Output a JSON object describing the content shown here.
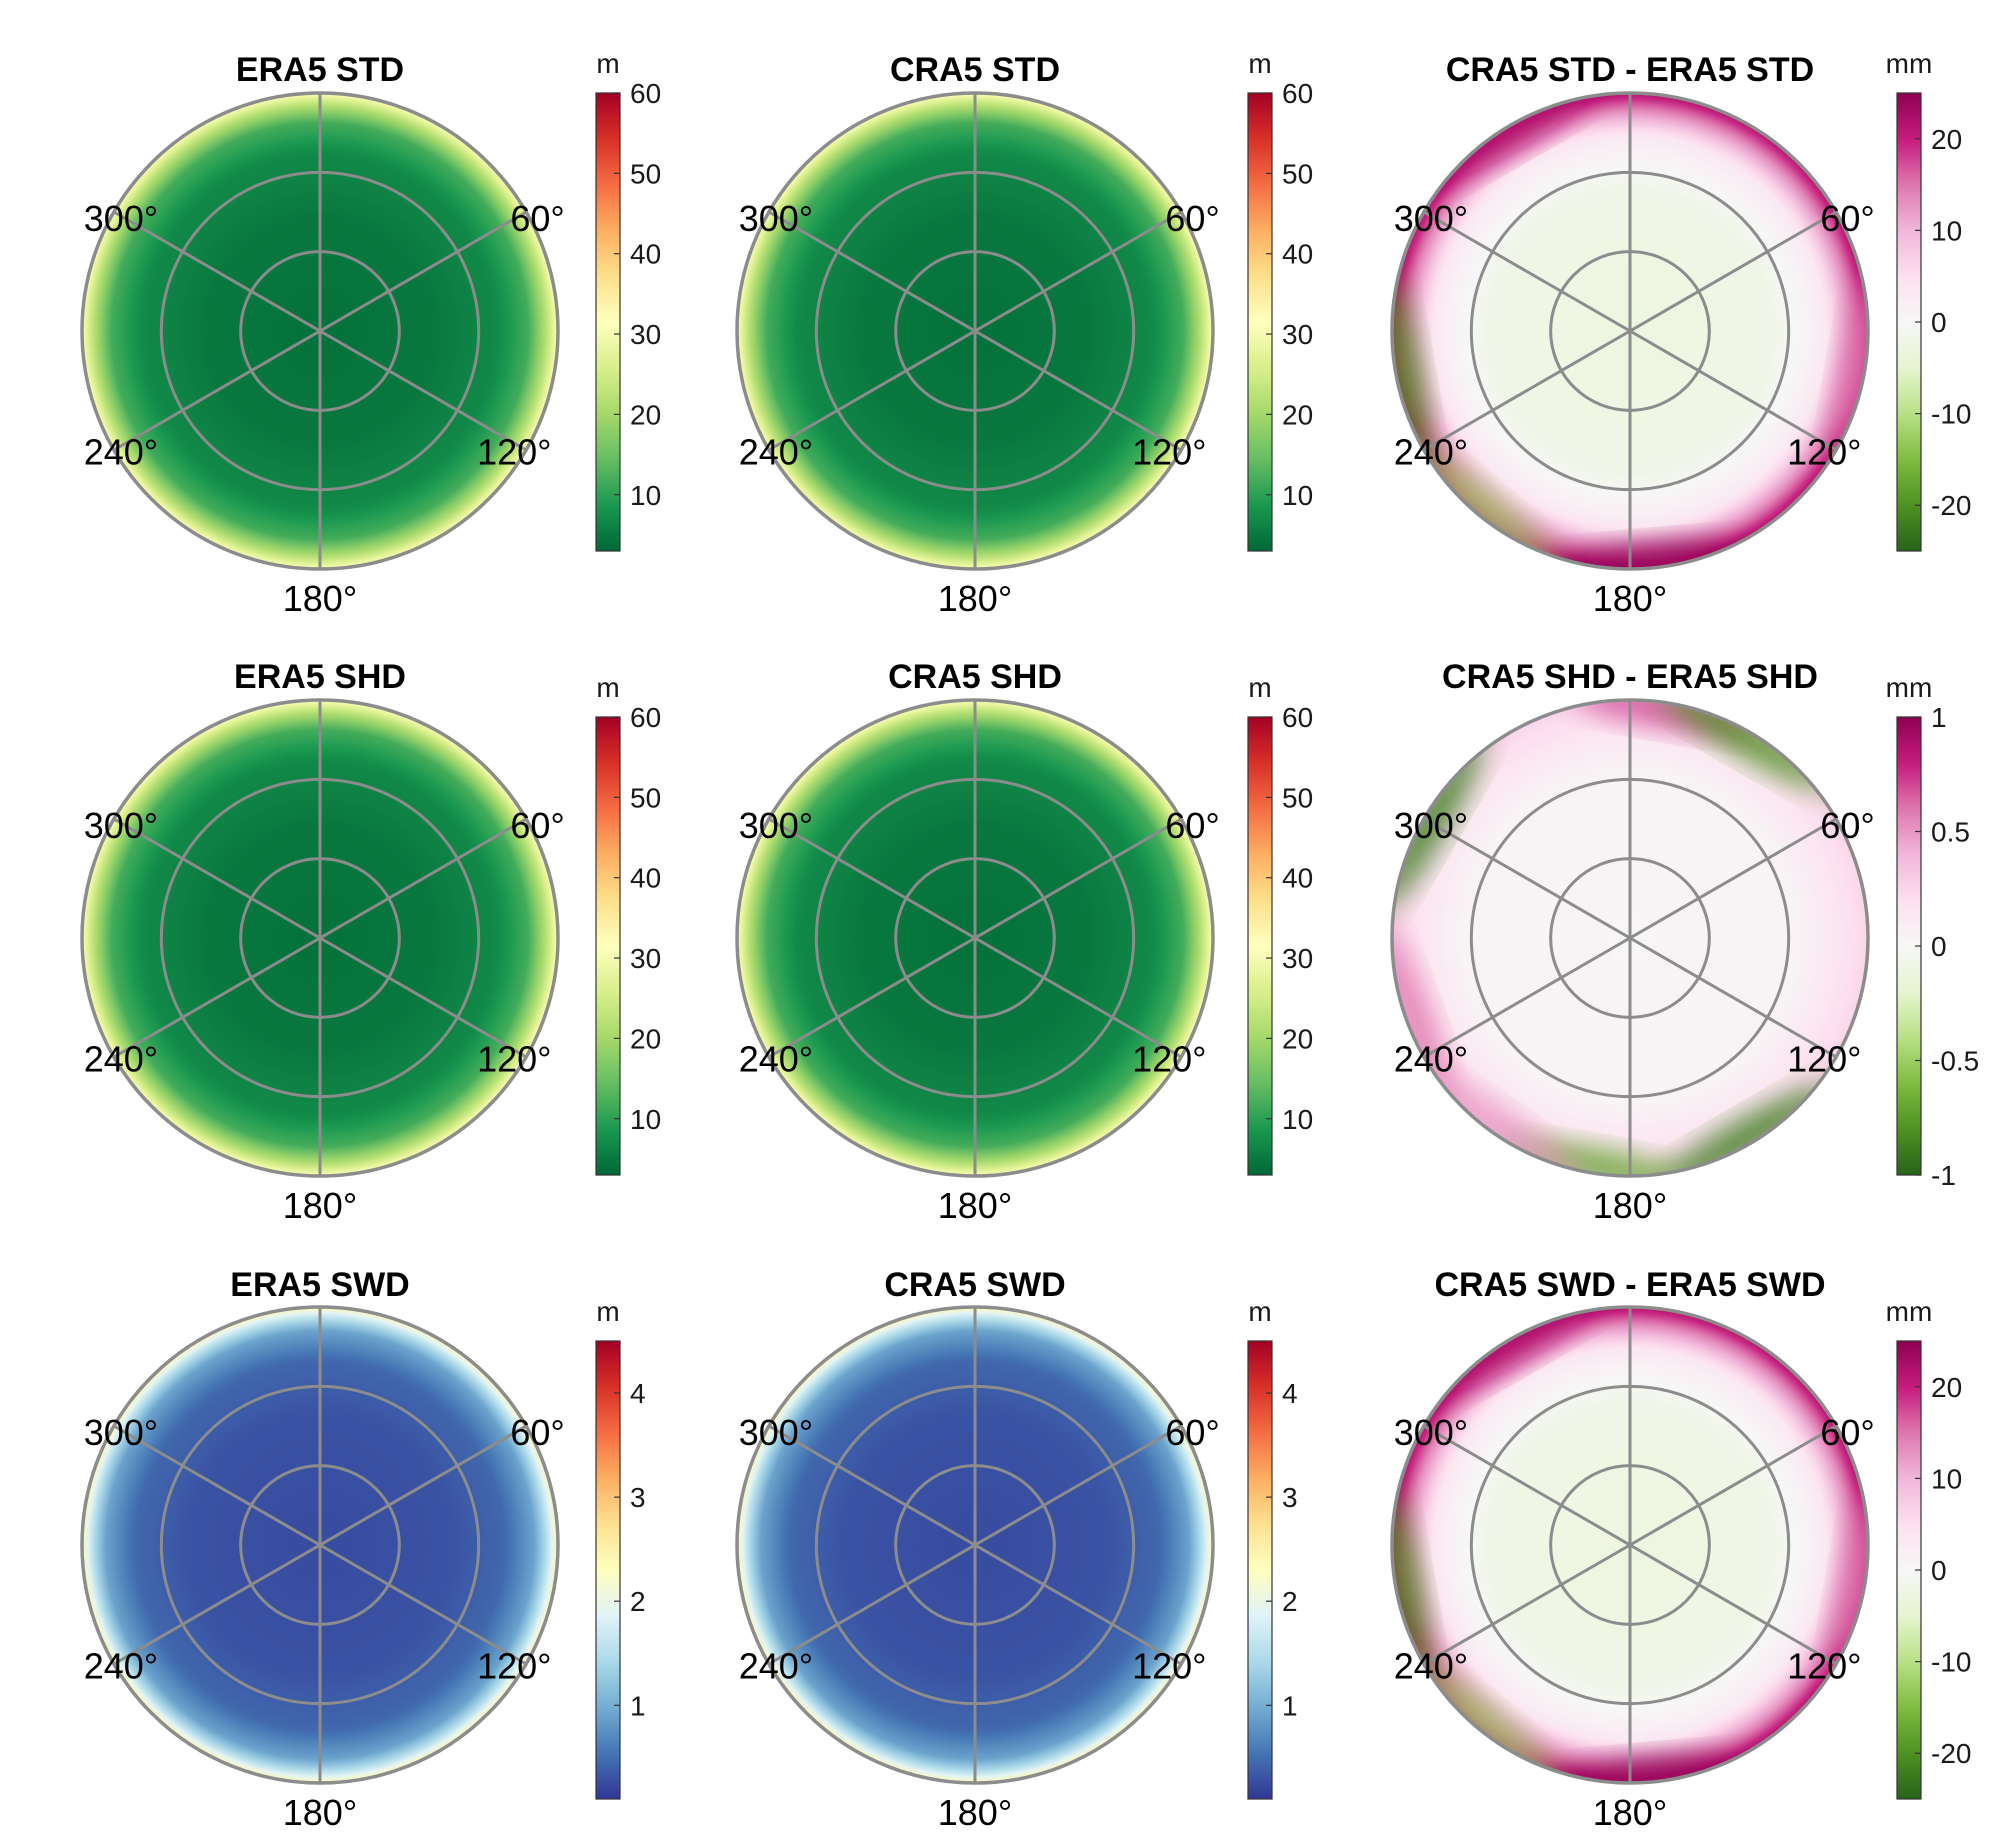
{
  "chart_data": [
    {
      "id": "p1",
      "type": "heatmap",
      "projection": "polar",
      "title": "ERA5 STD",
      "colormap": "RdYlGn_r",
      "colorbar": {
        "unit": "m",
        "range": [
          3,
          60
        ],
        "ticks": [
          10,
          20,
          30,
          40,
          50,
          60
        ]
      },
      "angle_labels": [
        "60°",
        "120°",
        "180°",
        "240°",
        "300°"
      ],
      "radial_profile": [
        [
          0,
          4
        ],
        [
          0.5,
          5
        ],
        [
          0.75,
          7
        ],
        [
          0.88,
          12
        ],
        [
          0.95,
          22
        ],
        [
          1,
          31
        ]
      ]
    },
    {
      "id": "p2",
      "type": "heatmap",
      "projection": "polar",
      "title": "CRA5 STD",
      "colormap": "RdYlGn_r",
      "colorbar": {
        "unit": "m",
        "range": [
          3,
          60
        ],
        "ticks": [
          10,
          20,
          30,
          40,
          50,
          60
        ]
      },
      "angle_labels": [
        "60°",
        "120°",
        "180°",
        "240°",
        "300°"
      ],
      "radial_profile": [
        [
          0,
          4
        ],
        [
          0.5,
          5
        ],
        [
          0.75,
          7
        ],
        [
          0.88,
          12
        ],
        [
          0.95,
          22
        ],
        [
          1,
          31
        ]
      ]
    },
    {
      "id": "p3",
      "type": "heatmap",
      "projection": "polar",
      "title": "CRA5 STD - ERA5 STD",
      "colormap": "PiYG_r",
      "colorbar": {
        "unit": "mm",
        "range": [
          -25,
          25
        ],
        "ticks": [
          -20,
          -10,
          0,
          10,
          20
        ]
      },
      "angle_labels": [
        "60°",
        "120°",
        "180°",
        "240°",
        "300°"
      ],
      "radial_profile": [
        [
          0,
          -3
        ],
        [
          0.6,
          -2
        ],
        [
          0.82,
          3
        ],
        [
          0.93,
          14
        ],
        [
          1,
          22
        ]
      ],
      "edge_anomalies": [
        {
          "azimuth": 175,
          "value": 25
        },
        {
          "azimuth": 330,
          "value": 22
        },
        {
          "azimuth": 260,
          "value": -20
        },
        {
          "azimuth": 220,
          "value": -12
        },
        {
          "azimuth": 100,
          "value": 15
        }
      ]
    },
    {
      "id": "p4",
      "type": "heatmap",
      "projection": "polar",
      "title": "ERA5 SHD",
      "colormap": "RdYlGn_r",
      "colorbar": {
        "unit": "m",
        "range": [
          3,
          60
        ],
        "ticks": [
          10,
          20,
          30,
          40,
          50,
          60
        ]
      },
      "angle_labels": [
        "60°",
        "120°",
        "180°",
        "240°",
        "300°"
      ],
      "radial_profile": [
        [
          0,
          4
        ],
        [
          0.5,
          5
        ],
        [
          0.75,
          7
        ],
        [
          0.88,
          12
        ],
        [
          0.95,
          22
        ],
        [
          1,
          31
        ]
      ]
    },
    {
      "id": "p5",
      "type": "heatmap",
      "projection": "polar",
      "title": "CRA5 SHD",
      "colormap": "RdYlGn_r",
      "colorbar": {
        "unit": "m",
        "range": [
          3,
          60
        ],
        "ticks": [
          10,
          20,
          30,
          40,
          50,
          60
        ]
      },
      "angle_labels": [
        "60°",
        "120°",
        "180°",
        "240°",
        "300°"
      ],
      "radial_profile": [
        [
          0,
          4
        ],
        [
          0.5,
          5
        ],
        [
          0.75,
          7
        ],
        [
          0.88,
          12
        ],
        [
          0.95,
          22
        ],
        [
          1,
          31
        ]
      ]
    },
    {
      "id": "p6",
      "type": "heatmap",
      "projection": "polar",
      "title": "CRA5 SHD - ERA5 SHD",
      "colormap": "PiYG_r",
      "colorbar": {
        "unit": "mm",
        "range": [
          -1,
          1
        ],
        "ticks": [
          -1,
          -0.5,
          0,
          0.5,
          1
        ]
      },
      "angle_labels": [
        "60°",
        "120°",
        "180°",
        "240°",
        "300°"
      ],
      "radial_profile": [
        [
          0,
          0.02
        ],
        [
          0.7,
          0.03
        ],
        [
          0.86,
          0.15
        ],
        [
          1,
          0.25
        ]
      ],
      "edge_anomalies": [
        {
          "azimuth": 10,
          "value": 0.7
        },
        {
          "azimuth": 30,
          "value": -0.8
        },
        {
          "azimuth": 300,
          "value": -0.9
        },
        {
          "azimuth": 250,
          "value": 0.6
        },
        {
          "azimuth": 150,
          "value": -0.9
        },
        {
          "azimuth": 190,
          "value": -0.7
        },
        {
          "azimuth": 215,
          "value": 0.5
        }
      ]
    },
    {
      "id": "p7",
      "type": "heatmap",
      "projection": "polar",
      "title": "ERA5 SWD",
      "colormap": "RdYlBu_r",
      "colorbar": {
        "unit": "m",
        "range": [
          0.1,
          4.5
        ],
        "ticks": [
          1,
          2,
          3,
          4
        ]
      },
      "angle_labels": [
        "60°",
        "120°",
        "180°",
        "240°",
        "300°"
      ],
      "radial_profile": [
        [
          0,
          0.25
        ],
        [
          0.55,
          0.3
        ],
        [
          0.78,
          0.45
        ],
        [
          0.9,
          0.9
        ],
        [
          0.96,
          1.6
        ],
        [
          1,
          2.4
        ]
      ]
    },
    {
      "id": "p8",
      "type": "heatmap",
      "projection": "polar",
      "title": "CRA5 SWD",
      "colormap": "RdYlBu_r",
      "colorbar": {
        "unit": "m",
        "range": [
          0.1,
          4.5
        ],
        "ticks": [
          1,
          2,
          3,
          4
        ]
      },
      "angle_labels": [
        "60°",
        "120°",
        "180°",
        "240°",
        "300°"
      ],
      "radial_profile": [
        [
          0,
          0.25
        ],
        [
          0.55,
          0.3
        ],
        [
          0.78,
          0.45
        ],
        [
          0.9,
          0.9
        ],
        [
          0.96,
          1.6
        ],
        [
          1,
          2.4
        ]
      ]
    },
    {
      "id": "p9",
      "type": "heatmap",
      "projection": "polar",
      "title": "CRA5 SWD - ERA5 SWD",
      "colormap": "PiYG_r",
      "colorbar": {
        "unit": "mm",
        "range": [
          -25,
          25
        ],
        "ticks": [
          -20,
          -10,
          0,
          10,
          20
        ]
      },
      "angle_labels": [
        "60°",
        "120°",
        "180°",
        "240°",
        "300°"
      ],
      "radial_profile": [
        [
          0,
          -3
        ],
        [
          0.6,
          -2
        ],
        [
          0.82,
          3
        ],
        [
          0.93,
          14
        ],
        [
          1,
          22
        ]
      ],
      "edge_anomalies": [
        {
          "azimuth": 175,
          "value": 25
        },
        {
          "azimuth": 330,
          "value": 22
        },
        {
          "azimuth": 260,
          "value": -20
        },
        {
          "azimuth": 220,
          "value": -12
        },
        {
          "azimuth": 100,
          "value": 15
        }
      ]
    }
  ],
  "colors": {
    "grid": "#8c8c8c",
    "RdYlGn_r": [
      "#006837",
      "#1a9850",
      "#66bd63",
      "#a6d96a",
      "#d9ef8b",
      "#ffffbf",
      "#fee08b",
      "#fdae61",
      "#f46d43",
      "#d73027",
      "#a50026"
    ],
    "RdYlBu_r": [
      "#313695",
      "#4575b4",
      "#74add1",
      "#abd9e9",
      "#e0f3f8",
      "#ffffbf",
      "#fee090",
      "#fdae61",
      "#f46d43",
      "#d73027",
      "#a50026"
    ],
    "PiYG_r": [
      "#276419",
      "#4d9221",
      "#7fbc41",
      "#b8e186",
      "#e6f5d0",
      "#f7f7f7",
      "#fde0ef",
      "#f1b6da",
      "#de77ae",
      "#c51b7d",
      "#8e0152"
    ]
  }
}
